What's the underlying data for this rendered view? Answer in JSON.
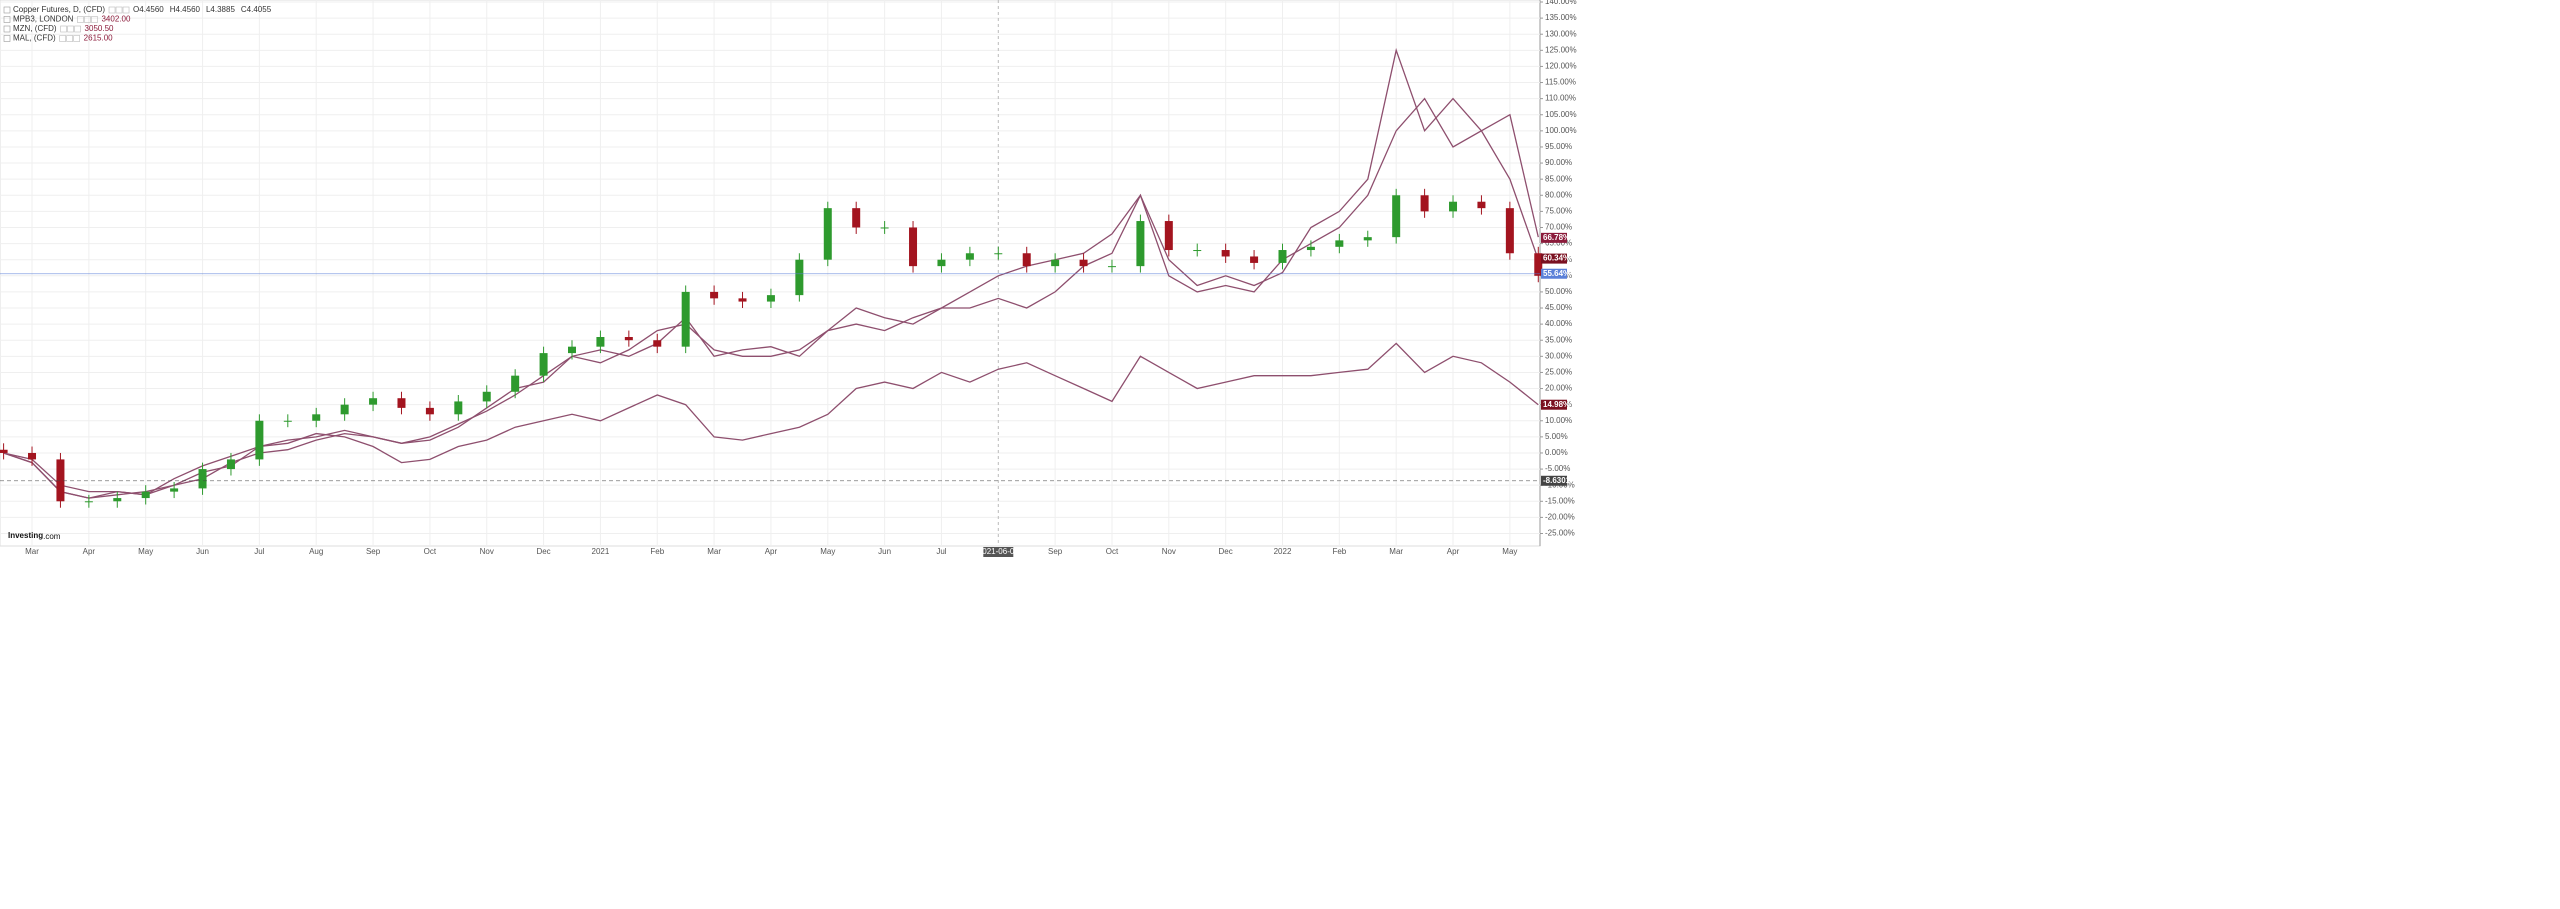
{
  "chart_data": {
    "type": "candlestick",
    "legend": [
      {
        "name": "Copper Futures, D, (CFD)",
        "stats": [
          "O4.4560",
          "H4.4560",
          "L4.3885",
          "C4.4055"
        ]
      },
      {
        "name": "MPB3, LONDON",
        "stats": [
          "3402.00"
        ]
      },
      {
        "name": "MZN, (CFD)",
        "stats": [
          "3050.50"
        ]
      },
      {
        "name": "MAL, (CFD)",
        "stats": [
          "2615.00"
        ]
      }
    ],
    "brand": {
      "main": "Investing",
      "suffix": ".com"
    },
    "crosshair_label": "2021-06-02",
    "categories": [
      null,
      "Mar",
      null,
      "Apr",
      null,
      "May",
      null,
      "Jun",
      null,
      "Jul",
      null,
      "Aug",
      null,
      "Sep",
      null,
      "Oct",
      null,
      "Nov",
      null,
      "Dec",
      null,
      "2021",
      null,
      "Feb",
      null,
      "Mar",
      null,
      "Apr",
      null,
      "May",
      null,
      "Jun",
      null,
      "Jul",
      null,
      null,
      null,
      "Sep",
      null,
      "Oct",
      null,
      "Nov",
      null,
      "Dec",
      null,
      "2022",
      null,
      "Feb",
      null,
      "Mar",
      null,
      "Apr",
      null,
      "May",
      null
    ],
    "ylim": [
      -25,
      140
    ],
    "yticks": [
      {
        "value": 140,
        "label": "140.00%"
      },
      {
        "value": 135,
        "label": "135.00%"
      },
      {
        "value": 130,
        "label": "130.00%"
      },
      {
        "value": 125,
        "label": "125.00%"
      },
      {
        "value": 120,
        "label": "120.00%"
      },
      {
        "value": 115,
        "label": "115.00%"
      },
      {
        "value": 110,
        "label": "110.00%"
      },
      {
        "value": 105,
        "label": "105.00%"
      },
      {
        "value": 100,
        "label": "100.00%"
      },
      {
        "value": 95,
        "label": "95.00%"
      },
      {
        "value": 90,
        "label": "90.00%"
      },
      {
        "value": 85,
        "label": "85.00%"
      },
      {
        "value": 80,
        "label": "80.00%"
      },
      {
        "value": 75,
        "label": "75.00%"
      },
      {
        "value": 70,
        "label": "70.00%"
      },
      {
        "value": 65,
        "label": "65.00%"
      },
      {
        "value": 60,
        "label": "60.00%"
      },
      {
        "value": 55,
        "label": "55.00%"
      },
      {
        "value": 50,
        "label": "50.00%"
      },
      {
        "value": 45,
        "label": "45.00%"
      },
      {
        "value": 40,
        "label": "40.00%"
      },
      {
        "value": 35,
        "label": "35.00%"
      },
      {
        "value": 30,
        "label": "30.00%"
      },
      {
        "value": 25,
        "label": "25.00%"
      },
      {
        "value": 20,
        "label": "20.00%"
      },
      {
        "value": 15,
        "label": "15.00%"
      },
      {
        "value": 10,
        "label": "10.00%"
      },
      {
        "value": 5,
        "label": "5.00%"
      },
      {
        "value": 0,
        "label": "0.00%"
      },
      {
        "value": -5,
        "label": "-5.00%"
      },
      {
        "value": -10,
        "label": "-10.00%"
      },
      {
        "value": -15,
        "label": "-15.00%"
      },
      {
        "value": -20,
        "label": "-20.00%"
      },
      {
        "value": -25,
        "label": "-25.00%"
      }
    ],
    "grid": true,
    "up_color": "#2e9a2e",
    "down_color": "#a3141f",
    "open": [
      1,
      0,
      -2,
      -15,
      -15,
      -14,
      -12,
      -11,
      -5,
      -2,
      10,
      10,
      12,
      15,
      17,
      14,
      12,
      16,
      19,
      24,
      31,
      33,
      36,
      35,
      33,
      50,
      48,
      47,
      49,
      60,
      76,
      70,
      70,
      58,
      60,
      62,
      62,
      58,
      60,
      58,
      58,
      72,
      63,
      63,
      61,
      59,
      63,
      64,
      66,
      67,
      80,
      75,
      78,
      76,
      62
    ],
    "high": [
      3,
      2,
      0,
      -13,
      -12,
      -10,
      -9,
      -3,
      0,
      12,
      12,
      14,
      17,
      19,
      19,
      16,
      18,
      21,
      26,
      33,
      35,
      38,
      38,
      37,
      52,
      52,
      50,
      51,
      62,
      78,
      78,
      72,
      72,
      62,
      64,
      64,
      64,
      62,
      62,
      60,
      74,
      74,
      65,
      65,
      63,
      65,
      66,
      68,
      69,
      82,
      82,
      80,
      80,
      78,
      64
    ],
    "low": [
      -2,
      -4,
      -17,
      -17,
      -17,
      -16,
      -14,
      -13,
      -7,
      -4,
      8,
      8,
      10,
      13,
      12,
      10,
      10,
      14,
      17,
      22,
      29,
      31,
      33,
      31,
      31,
      46,
      45,
      45,
      47,
      58,
      68,
      68,
      56,
      56,
      58,
      60,
      56,
      56,
      56,
      56,
      56,
      61,
      61,
      59,
      57,
      57,
      61,
      62,
      64,
      65,
      73,
      73,
      74,
      60,
      53
    ],
    "close": [
      0,
      -2,
      -15,
      -15,
      -14,
      -12,
      -11,
      -5,
      -2,
      10,
      10,
      12,
      15,
      17,
      14,
      12,
      16,
      19,
      24,
      31,
      33,
      36,
      35,
      33,
      50,
      48,
      47,
      49,
      60,
      76,
      70,
      70,
      58,
      60,
      62,
      62,
      58,
      60,
      58,
      58,
      72,
      63,
      63,
      61,
      59,
      63,
      64,
      66,
      67,
      80,
      75,
      78,
      76,
      62,
      55
    ],
    "series": [
      {
        "name": "MPB3, LONDON",
        "color": "#8e4f6e",
        "values": [
          0,
          -3,
          -12,
          -14,
          -12,
          -13,
          -10,
          -6,
          -4,
          2,
          4,
          5,
          7,
          5,
          3,
          4,
          8,
          14,
          20,
          22,
          30,
          28,
          32,
          38,
          40,
          32,
          30,
          30,
          32,
          38,
          45,
          42,
          40,
          45,
          45,
          48,
          45,
          50,
          58,
          62,
          80,
          60,
          52,
          55,
          52,
          56,
          70,
          75,
          85,
          125,
          100,
          110,
          100,
          105,
          67
        ]
      },
      {
        "name": "MZN, (CFD)",
        "color": "#8e4f6e",
        "values": [
          0,
          -3,
          -12,
          -14,
          -13,
          -12,
          -10,
          -8,
          -3,
          0,
          1,
          4,
          6,
          5,
          3,
          5,
          9,
          13,
          18,
          24,
          30,
          32,
          30,
          34,
          42,
          30,
          32,
          33,
          30,
          38,
          40,
          38,
          42,
          45,
          50,
          55,
          58,
          60,
          62,
          68,
          80,
          55,
          50,
          52,
          50,
          60,
          65,
          70,
          80,
          100,
          110,
          95,
          100,
          85,
          60
        ]
      },
      {
        "name": "MAL, (CFD)",
        "color": "#8e4f6e",
        "values": [
          0,
          -2,
          -10,
          -12,
          -12,
          -13,
          -8,
          -4,
          -1,
          2,
          3,
          6,
          5,
          2,
          -3,
          -2,
          2,
          4,
          8,
          10,
          12,
          10,
          14,
          18,
          15,
          5,
          4,
          6,
          8,
          12,
          20,
          22,
          20,
          25,
          22,
          26,
          28,
          24,
          20,
          16,
          30,
          25,
          20,
          22,
          24,
          24,
          24,
          25,
          26,
          34,
          25,
          30,
          28,
          22,
          15
        ]
      }
    ],
    "price_tags": [
      {
        "label": "66.78%",
        "value": 66.78,
        "color": "#8b1a3a"
      },
      {
        "label": "60.34%",
        "value": 60.34,
        "color": "#7a1020"
      },
      {
        "label": "55.64%",
        "value": 55.64,
        "color": "#5b80d8",
        "line": "solid"
      },
      {
        "label": "14.98%",
        "value": 14.98,
        "color": "#7a1020"
      },
      {
        "label": "-8.6301",
        "value": -8.6301,
        "color": "#444444",
        "line": "dashed"
      }
    ]
  }
}
